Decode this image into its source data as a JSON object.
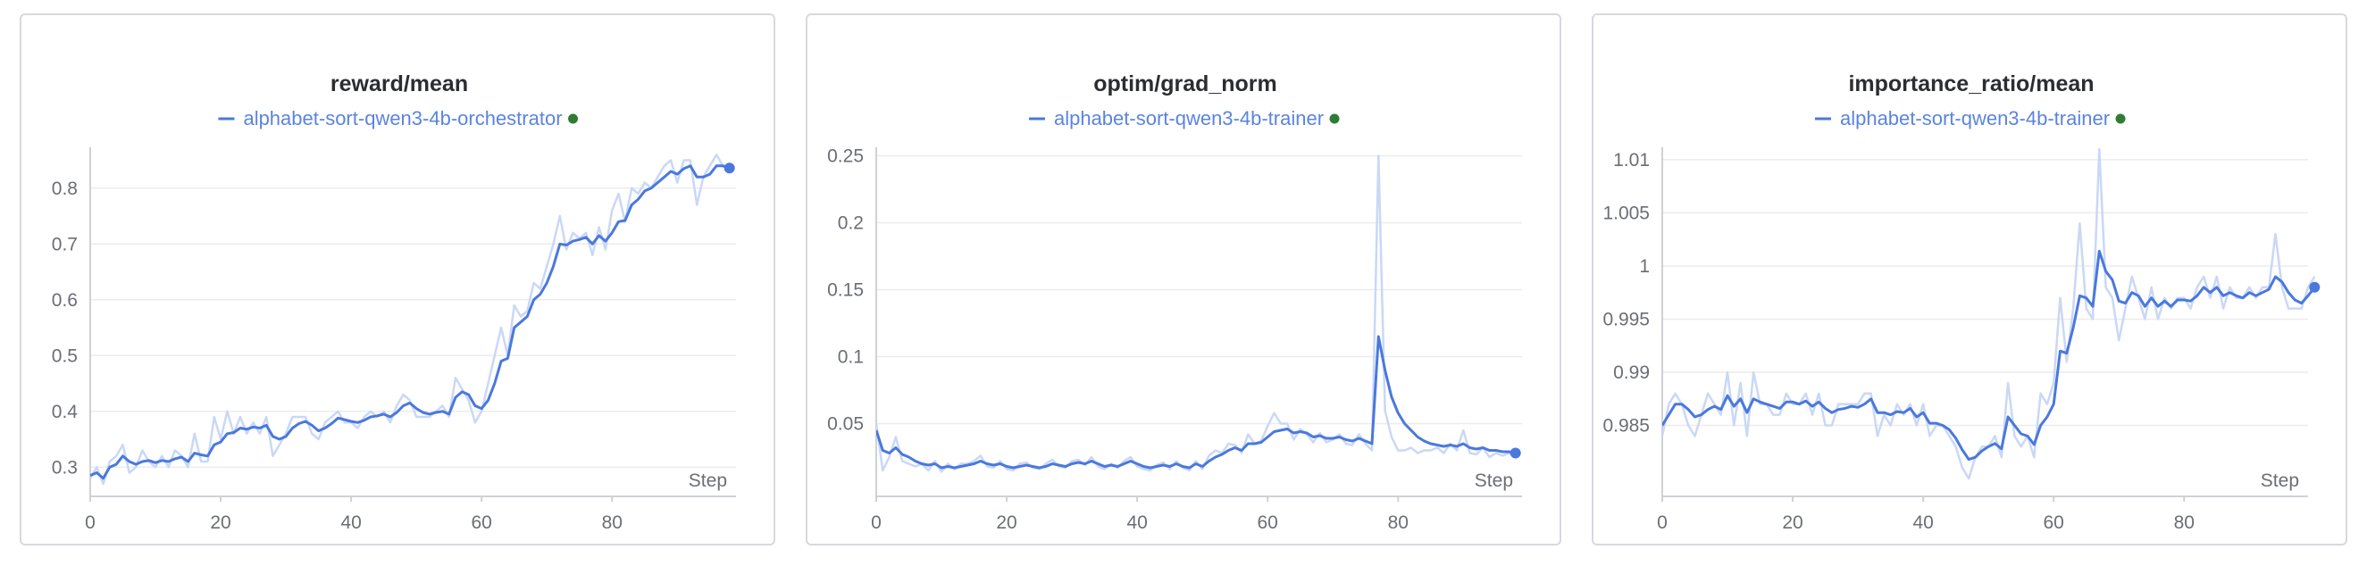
{
  "colors": {
    "line": "#4a78dd",
    "raw_line": "#c9d8f5",
    "legend_text": "#5b84de",
    "status_dot": "#2e7d32",
    "grid": "#ececec",
    "axis": "#cfd1d6"
  },
  "chart_data": [
    {
      "type": "line",
      "title": "reward/mean",
      "xlabel": "Step",
      "xlim": [
        0,
        99
      ],
      "ylim": [
        0.27,
        0.87
      ],
      "x_ticks": [
        0,
        20,
        40,
        60,
        80
      ],
      "y_ticks": [
        0.3,
        0.4,
        0.5,
        0.6,
        0.7,
        0.8
      ],
      "y_tick_labels": [
        "0.3",
        "0.4",
        "0.5",
        "0.6",
        "0.7",
        "0.8"
      ],
      "series": [
        {
          "name": "alphabet-sort-qwen3-4b-orchestrator",
          "x_start": 0,
          "smoothed": [
            0.285,
            0.29,
            0.28,
            0.3,
            0.305,
            0.32,
            0.31,
            0.305,
            0.31,
            0.312,
            0.308,
            0.312,
            0.31,
            0.315,
            0.318,
            0.31,
            0.325,
            0.322,
            0.32,
            0.34,
            0.345,
            0.36,
            0.362,
            0.37,
            0.368,
            0.372,
            0.37,
            0.375,
            0.355,
            0.35,
            0.355,
            0.37,
            0.378,
            0.382,
            0.375,
            0.365,
            0.37,
            0.378,
            0.388,
            0.385,
            0.382,
            0.38,
            0.384,
            0.39,
            0.392,
            0.395,
            0.39,
            0.398,
            0.41,
            0.415,
            0.405,
            0.398,
            0.395,
            0.398,
            0.4,
            0.395,
            0.425,
            0.435,
            0.43,
            0.41,
            0.405,
            0.42,
            0.45,
            0.49,
            0.495,
            0.55,
            0.56,
            0.57,
            0.6,
            0.61,
            0.63,
            0.66,
            0.7,
            0.698,
            0.705,
            0.708,
            0.712,
            0.7,
            0.715,
            0.705,
            0.72,
            0.74,
            0.742,
            0.77,
            0.78,
            0.795,
            0.8,
            0.81,
            0.82,
            0.83,
            0.825,
            0.835,
            0.84,
            0.82,
            0.82,
            0.825,
            0.84,
            0.84,
            0.836
          ],
          "raw": [
            0.28,
            0.3,
            0.27,
            0.31,
            0.32,
            0.34,
            0.29,
            0.3,
            0.33,
            0.31,
            0.3,
            0.32,
            0.3,
            0.33,
            0.32,
            0.3,
            0.36,
            0.31,
            0.31,
            0.39,
            0.35,
            0.4,
            0.36,
            0.39,
            0.36,
            0.38,
            0.36,
            0.39,
            0.32,
            0.34,
            0.36,
            0.39,
            0.39,
            0.39,
            0.36,
            0.35,
            0.38,
            0.39,
            0.4,
            0.38,
            0.38,
            0.37,
            0.39,
            0.4,
            0.39,
            0.4,
            0.38,
            0.41,
            0.43,
            0.42,
            0.39,
            0.39,
            0.39,
            0.4,
            0.41,
            0.39,
            0.46,
            0.44,
            0.42,
            0.38,
            0.4,
            0.45,
            0.5,
            0.55,
            0.5,
            0.59,
            0.57,
            0.58,
            0.63,
            0.62,
            0.66,
            0.7,
            0.75,
            0.69,
            0.72,
            0.71,
            0.72,
            0.68,
            0.73,
            0.69,
            0.76,
            0.79,
            0.74,
            0.8,
            0.79,
            0.81,
            0.8,
            0.82,
            0.84,
            0.85,
            0.81,
            0.85,
            0.85,
            0.77,
            0.82,
            0.84,
            0.86,
            0.84,
            0.83
          ]
        }
      ]
    },
    {
      "type": "line",
      "title": "optim/grad_norm",
      "xlabel": "Step",
      "xlim": [
        0,
        99
      ],
      "ylim": [
        0.005,
        0.255
      ],
      "x_ticks": [
        0,
        20,
        40,
        60,
        80
      ],
      "y_ticks": [
        0.05,
        0.1,
        0.15,
        0.2,
        0.25
      ],
      "y_tick_labels": [
        "0.05",
        "0.1",
        "0.15",
        "0.2",
        "0.25"
      ],
      "series": [
        {
          "name": "alphabet-sort-qwen3-4b-trainer",
          "x_start": 0,
          "smoothed": [
            0.045,
            0.03,
            0.028,
            0.032,
            0.027,
            0.025,
            0.022,
            0.02,
            0.019,
            0.02,
            0.017,
            0.018,
            0.017,
            0.018,
            0.019,
            0.02,
            0.022,
            0.02,
            0.019,
            0.02,
            0.018,
            0.017,
            0.018,
            0.019,
            0.018,
            0.017,
            0.018,
            0.02,
            0.019,
            0.018,
            0.02,
            0.021,
            0.02,
            0.022,
            0.02,
            0.018,
            0.019,
            0.018,
            0.02,
            0.022,
            0.02,
            0.018,
            0.017,
            0.018,
            0.019,
            0.018,
            0.02,
            0.018,
            0.017,
            0.02,
            0.018,
            0.022,
            0.025,
            0.027,
            0.03,
            0.032,
            0.03,
            0.035,
            0.035,
            0.036,
            0.04,
            0.044,
            0.045,
            0.046,
            0.043,
            0.044,
            0.043,
            0.04,
            0.041,
            0.039,
            0.039,
            0.04,
            0.038,
            0.037,
            0.039,
            0.037,
            0.035,
            0.115,
            0.09,
            0.07,
            0.058,
            0.05,
            0.045,
            0.04,
            0.037,
            0.035,
            0.034,
            0.033,
            0.034,
            0.033,
            0.035,
            0.032,
            0.031,
            0.032,
            0.03,
            0.03,
            0.029,
            0.029,
            0.028
          ],
          "raw": [
            0.05,
            0.015,
            0.025,
            0.04,
            0.022,
            0.02,
            0.018,
            0.02,
            0.015,
            0.022,
            0.014,
            0.02,
            0.016,
            0.02,
            0.02,
            0.022,
            0.026,
            0.018,
            0.017,
            0.022,
            0.016,
            0.015,
            0.02,
            0.021,
            0.017,
            0.016,
            0.02,
            0.023,
            0.018,
            0.017,
            0.022,
            0.023,
            0.019,
            0.025,
            0.018,
            0.016,
            0.02,
            0.017,
            0.022,
            0.025,
            0.018,
            0.016,
            0.015,
            0.019,
            0.021,
            0.016,
            0.022,
            0.017,
            0.015,
            0.022,
            0.016,
            0.026,
            0.03,
            0.028,
            0.035,
            0.034,
            0.028,
            0.042,
            0.035,
            0.037,
            0.048,
            0.058,
            0.05,
            0.05,
            0.038,
            0.046,
            0.042,
            0.036,
            0.043,
            0.036,
            0.038,
            0.042,
            0.035,
            0.034,
            0.042,
            0.035,
            0.03,
            0.25,
            0.06,
            0.04,
            0.03,
            0.03,
            0.032,
            0.028,
            0.03,
            0.03,
            0.032,
            0.028,
            0.035,
            0.03,
            0.045,
            0.028,
            0.027,
            0.032,
            0.025,
            0.028,
            0.026,
            0.028,
            0.026
          ]
        }
      ]
    },
    {
      "type": "line",
      "title": "importance_ratio/mean",
      "xlabel": "Step",
      "xlim": [
        0,
        99
      ],
      "ylim": [
        0.9795,
        1.011
      ],
      "x_ticks": [
        0,
        20,
        40,
        60,
        80
      ],
      "y_ticks": [
        0.985,
        0.99,
        0.995,
        1.0,
        1.005,
        1.01
      ],
      "y_tick_labels": [
        "0.985",
        "0.99",
        "0.995",
        "1",
        "1.005",
        "1.01"
      ],
      "series": [
        {
          "name": "alphabet-sort-qwen3-4b-trainer",
          "x_start": 0,
          "smoothed": [
            0.985,
            0.986,
            0.987,
            0.987,
            0.9865,
            0.9858,
            0.986,
            0.9865,
            0.9868,
            0.9865,
            0.9878,
            0.9868,
            0.9875,
            0.9862,
            0.9875,
            0.9872,
            0.987,
            0.9868,
            0.9866,
            0.9872,
            0.9872,
            0.987,
            0.9873,
            0.9868,
            0.9872,
            0.9866,
            0.9862,
            0.9865,
            0.9866,
            0.9868,
            0.9867,
            0.987,
            0.9875,
            0.9862,
            0.9862,
            0.986,
            0.9863,
            0.9862,
            0.9866,
            0.9858,
            0.9862,
            0.9852,
            0.9852,
            0.985,
            0.9846,
            0.9838,
            0.9827,
            0.9818,
            0.982,
            0.9826,
            0.983,
            0.9833,
            0.9828,
            0.9858,
            0.985,
            0.9842,
            0.984,
            0.9832,
            0.985,
            0.9858,
            0.987,
            0.992,
            0.9918,
            0.9942,
            0.9972,
            0.997,
            0.9962,
            1.0014,
            0.9995,
            0.9987,
            0.9967,
            0.9965,
            0.9975,
            0.9972,
            0.9962,
            0.997,
            0.9962,
            0.9967,
            0.9962,
            0.9968,
            0.9968,
            0.9967,
            0.9972,
            0.998,
            0.9975,
            0.998,
            0.9972,
            0.9975,
            0.9972,
            0.997,
            0.9975,
            0.9972,
            0.9975,
            0.9978,
            0.999,
            0.9985,
            0.9975,
            0.9968,
            0.9965,
            0.9972,
            0.998
          ],
          "raw": [
            0.984,
            0.987,
            0.988,
            0.987,
            0.985,
            0.984,
            0.986,
            0.988,
            0.987,
            0.986,
            0.99,
            0.985,
            0.989,
            0.984,
            0.99,
            0.987,
            0.987,
            0.986,
            0.986,
            0.988,
            0.987,
            0.987,
            0.988,
            0.986,
            0.988,
            0.985,
            0.985,
            0.987,
            0.987,
            0.987,
            0.987,
            0.988,
            0.988,
            0.984,
            0.986,
            0.985,
            0.987,
            0.986,
            0.987,
            0.985,
            0.987,
            0.984,
            0.985,
            0.985,
            0.984,
            0.983,
            0.981,
            0.98,
            0.982,
            0.983,
            0.983,
            0.984,
            0.982,
            0.989,
            0.984,
            0.983,
            0.984,
            0.982,
            0.988,
            0.987,
            0.989,
            0.997,
            0.991,
            0.996,
            1.004,
            0.996,
            0.995,
            1.011,
            0.998,
            0.997,
            0.993,
            0.996,
            0.999,
            0.997,
            0.995,
            0.998,
            0.995,
            0.997,
            0.996,
            0.997,
            0.997,
            0.996,
            0.998,
            0.999,
            0.997,
            0.999,
            0.996,
            0.998,
            0.997,
            0.997,
            0.998,
            0.997,
            0.998,
            0.998,
            1.003,
            0.998,
            0.996,
            0.996,
            0.996,
            0.998,
            0.999
          ]
        }
      ]
    }
  ]
}
